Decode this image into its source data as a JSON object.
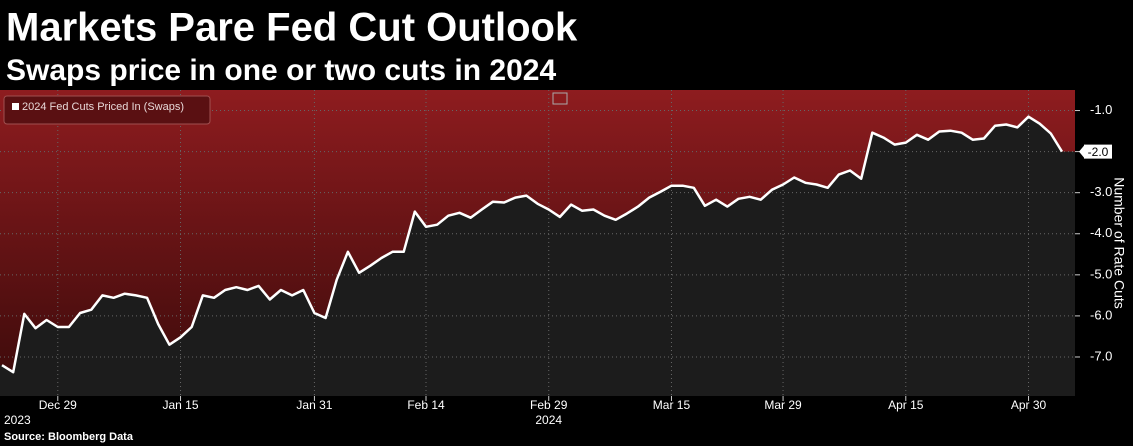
{
  "chart_data": {
    "type": "line",
    "title": "Markets Pare Fed Cut Outlook",
    "subtitle": "Swaps price in one or two cuts in 2024",
    "source": "Source: Bloomberg Data",
    "y_axis_label": "Number of Rate Cuts",
    "legend_position": "top-left",
    "grid": true,
    "categories": [
      null,
      null,
      null,
      null,
      null,
      "Dec 29",
      null,
      null,
      null,
      null,
      null,
      null,
      null,
      null,
      null,
      null,
      "Jan 15",
      null,
      null,
      null,
      null,
      null,
      null,
      null,
      null,
      null,
      null,
      null,
      "Jan 31",
      null,
      null,
      null,
      null,
      null,
      null,
      null,
      null,
      null,
      "Feb 14",
      null,
      null,
      null,
      null,
      null,
      null,
      null,
      null,
      null,
      null,
      "Feb 29",
      null,
      null,
      null,
      null,
      null,
      null,
      null,
      null,
      null,
      null,
      "Mar 15",
      null,
      null,
      null,
      null,
      null,
      null,
      null,
      null,
      null,
      "Mar 29",
      null,
      null,
      null,
      null,
      null,
      null,
      null,
      null,
      null,
      null,
      "Apr 15",
      null,
      null,
      null,
      null,
      null,
      null,
      null,
      null,
      null,
      null,
      "Apr 30",
      null,
      null,
      null
    ],
    "year_labels": [
      {
        "at": "Dec 29",
        "label": "2023"
      },
      {
        "at": "Feb 29",
        "label": "2024"
      }
    ],
    "series": [
      {
        "name": "2024 Fed Cuts Priced In (Swaps)",
        "color": "#ffffff",
        "values": [
          -7.2,
          -7.37,
          -5.95,
          -6.3,
          -6.1,
          -6.27,
          -6.27,
          -5.93,
          -5.85,
          -5.5,
          -5.56,
          -5.46,
          -5.5,
          -5.56,
          -6.2,
          -6.7,
          -6.52,
          -6.27,
          -5.5,
          -5.56,
          -5.37,
          -5.3,
          -5.37,
          -5.27,
          -5.6,
          -5.37,
          -5.5,
          -5.37,
          -5.93,
          -6.05,
          -5.12,
          -4.44,
          -4.95,
          -4.78,
          -4.59,
          -4.44,
          -4.44,
          -3.46,
          -3.83,
          -3.78,
          -3.56,
          -3.49,
          -3.61,
          -3.41,
          -3.22,
          -3.24,
          -3.12,
          -3.07,
          -3.27,
          -3.41,
          -3.59,
          -3.29,
          -3.44,
          -3.41,
          -3.56,
          -3.66,
          -3.51,
          -3.34,
          -3.12,
          -2.98,
          -2.83,
          -2.83,
          -2.88,
          -3.32,
          -3.17,
          -3.34,
          -3.15,
          -3.1,
          -3.17,
          -2.93,
          -2.8,
          -2.63,
          -2.76,
          -2.8,
          -2.88,
          -2.56,
          -2.46,
          -2.66,
          -1.54,
          -1.66,
          -1.83,
          -1.78,
          -1.59,
          -1.71,
          -1.51,
          -1.49,
          -1.54,
          -1.71,
          -1.68,
          -1.37,
          -1.34,
          -1.41,
          -1.15,
          -1.32,
          -1.56,
          -2.0
        ],
        "value_labels": [
          null,
          null,
          null,
          null,
          null,
          null,
          null,
          null,
          null,
          null,
          null,
          null,
          null,
          null,
          null,
          null,
          null,
          null,
          null,
          null,
          null,
          null,
          null,
          null,
          null,
          null,
          null,
          null,
          null,
          null,
          null,
          null,
          null,
          null,
          null,
          null,
          null,
          null,
          null,
          null,
          null,
          null,
          null,
          null,
          null,
          null,
          null,
          null,
          null,
          null,
          null,
          null,
          null,
          null,
          null,
          null,
          null,
          null,
          null,
          null,
          null,
          null,
          null,
          null,
          null,
          null,
          null,
          null,
          null,
          null,
          null,
          null,
          null,
          null,
          null,
          null,
          null,
          null,
          null,
          null,
          null,
          null,
          null,
          null,
          null,
          null,
          null,
          null,
          null,
          null,
          null,
          null,
          null,
          null,
          null,
          "-2.0"
        ]
      }
    ],
    "ylim": [
      -7.95,
      -0.5
    ],
    "yticks": [
      {
        "value": -1,
        "label": "-1.0"
      },
      {
        "value": -2,
        "label": "-2.0"
      },
      {
        "value": -3,
        "label": "-3.0"
      },
      {
        "value": -4,
        "label": "-4.0"
      },
      {
        "value": -5,
        "label": "-5.0"
      },
      {
        "value": -6,
        "label": "-6.0"
      },
      {
        "value": -7,
        "label": "-7.0"
      }
    ]
  }
}
